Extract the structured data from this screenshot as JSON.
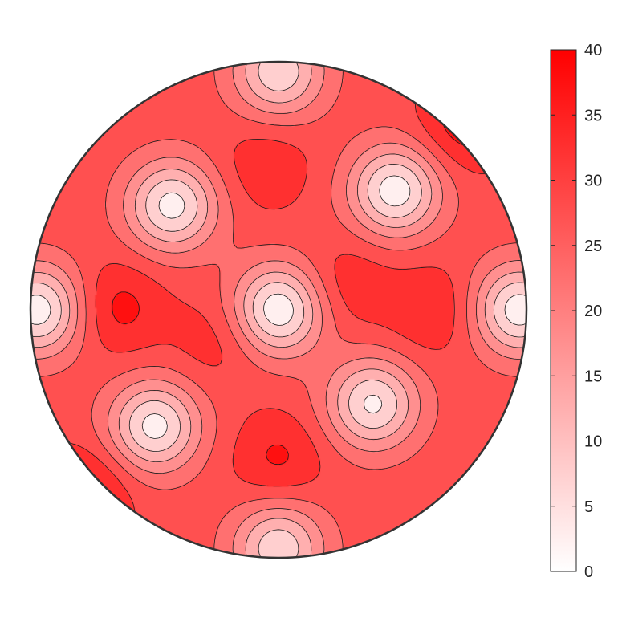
{
  "chart_data": {
    "type": "heatmap",
    "subtype": "polar-contour",
    "title": "",
    "xlabel": "",
    "ylabel": "",
    "colormap": {
      "low": "#ffffff",
      "high": "#ff0000"
    },
    "zlim": [
      0,
      40
    ],
    "contour_levels": [
      0,
      5,
      10,
      15,
      20,
      25,
      30,
      35,
      40
    ],
    "colorbar": {
      "placement": "right",
      "ticks": [
        0,
        5,
        10,
        15,
        20,
        25,
        30,
        35,
        40
      ],
      "tick_labels": [
        "0",
        "5",
        "10",
        "15",
        "20",
        "25",
        "30",
        "35",
        "40"
      ]
    },
    "features": [
      {
        "kind": "min",
        "x": 0.0,
        "y": 0.0,
        "value": 1
      },
      {
        "kind": "min",
        "x": -0.43,
        "y": 0.42,
        "value": 3
      },
      {
        "kind": "min",
        "x": 0.47,
        "y": 0.48,
        "value": 2
      },
      {
        "kind": "min",
        "x": -0.5,
        "y": -0.47,
        "value": 3
      },
      {
        "kind": "min",
        "x": 0.38,
        "y": -0.38,
        "value": 4
      },
      {
        "kind": "min",
        "x": 0.0,
        "y": 0.96,
        "value": 6
      },
      {
        "kind": "min",
        "x": 0.0,
        "y": -0.96,
        "value": 6
      },
      {
        "kind": "min",
        "x": 0.97,
        "y": 0.0,
        "value": 2
      },
      {
        "kind": "min",
        "x": -0.97,
        "y": 0.0,
        "value": 2
      },
      {
        "kind": "max",
        "x": -0.65,
        "y": 0.01,
        "value": 37
      },
      {
        "kind": "max",
        "x": 0.62,
        "y": 0.0,
        "value": 35
      },
      {
        "kind": "max",
        "x": 0.0,
        "y": -0.6,
        "value": 36
      },
      {
        "kind": "max",
        "x": -0.05,
        "y": 0.58,
        "value": 34
      },
      {
        "kind": "max",
        "x": 0.75,
        "y": 0.75,
        "value": 38
      },
      {
        "kind": "max",
        "x": -0.78,
        "y": -0.74,
        "value": 38
      },
      {
        "kind": "max",
        "x": 0.28,
        "y": 0.1,
        "value": 34
      },
      {
        "kind": "max",
        "x": -0.25,
        "y": -0.12,
        "value": 33
      }
    ]
  }
}
